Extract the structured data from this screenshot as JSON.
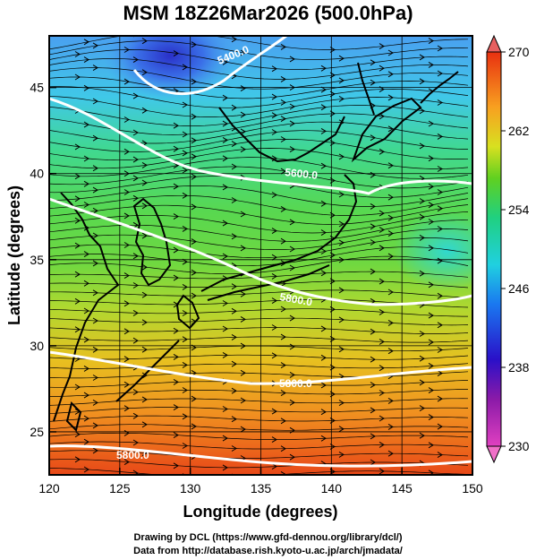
{
  "title": "MSM 18Z26Mar2026 (500.0hPa)",
  "axes": {
    "xlabel": "Longitude (degrees)",
    "ylabel": "Latitude  (degrees)",
    "xlim": [
      120,
      150
    ],
    "ylim": [
      22.5,
      48
    ],
    "xticks": [
      "120",
      "125",
      "130",
      "135",
      "140",
      "145",
      "150"
    ],
    "yticks": [
      "25",
      "30",
      "35",
      "40",
      "45"
    ]
  },
  "colorbar": {
    "range": [
      230,
      270
    ],
    "tick_labels": [
      "270",
      "262",
      "254",
      "246",
      "238",
      "230"
    ]
  },
  "contours": {
    "labels": [
      "5400.0",
      "5600.0",
      "5800.0",
      "5800.0",
      "5800.0"
    ]
  },
  "credits": {
    "line1": "Drawing by DCL (https://www.gfd-dennou.org/library/dcl/)",
    "line2": "Data from http://database.rish.kyoto-u.ac.jp/arch/jmadata/"
  }
}
